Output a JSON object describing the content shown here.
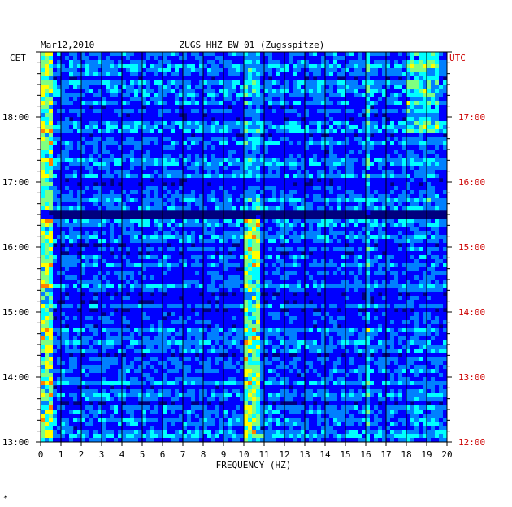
{
  "header": {
    "date": "Mar12,2010",
    "station": "ZUGS HHZ BW 01 (Zugsspitze)"
  },
  "left_axis_title": "CET",
  "right_axis_title": "UTC",
  "footer_mark": "*",
  "colors": {
    "background": "#00007f",
    "grid": "#000000",
    "utc_text": "#cc0000",
    "cet_text": "#000000",
    "colormap": [
      "#00007f",
      "#0000ff",
      "#0080ff",
      "#00ffff",
      "#80ff80",
      "#ffff00",
      "#ff8000",
      "#ff0000"
    ]
  },
  "chart_data": {
    "type": "heatmap",
    "title": "ZUGS HHZ BW 01 (Zugsspitze)",
    "xlabel": "FREQUENCY (HZ)",
    "ylabel": "",
    "xlim": [
      0,
      20
    ],
    "x_ticks": [
      "0",
      "1",
      "2",
      "3",
      "4",
      "5",
      "6",
      "7",
      "8",
      "9",
      "10",
      "11",
      "12",
      "13",
      "14",
      "15",
      "16",
      "17",
      "18",
      "19",
      "20"
    ],
    "y_ticks_left": [
      "18:00",
      "17:00",
      "16:00",
      "15:00",
      "14:00",
      "13:00"
    ],
    "y_ticks_right": [
      "17:00",
      "16:00",
      "15:00",
      "14:00",
      "13:00",
      "12:00"
    ],
    "time_range_cet": [
      "13:00",
      "18:45"
    ],
    "grid": true,
    "features": [
      {
        "freq_hz": [
          0.0,
          0.6
        ],
        "intensity": "high",
        "note": "microseism low-frequency band"
      },
      {
        "freq_hz": [
          10.0,
          10.8
        ],
        "intensity": "high",
        "note": "persistent line near 10.3 Hz"
      },
      {
        "freq_hz": [
          16.0,
          16.1
        ],
        "intensity": "medium",
        "note": "narrow line near 16 Hz"
      },
      {
        "freq_hz": [
          18.0,
          19.5
        ],
        "intensity": "medium",
        "note": "broadband activity after 17:30 CET"
      }
    ]
  }
}
